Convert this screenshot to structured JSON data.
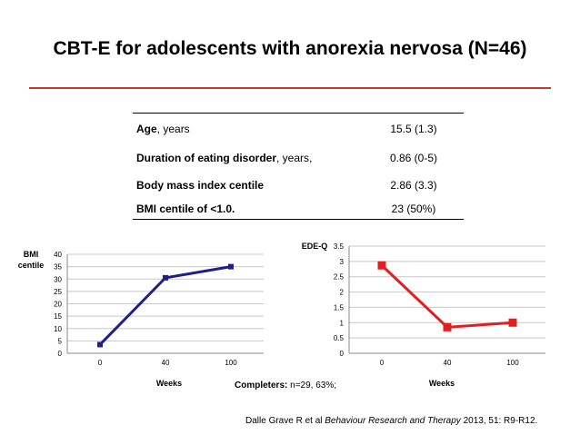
{
  "title": "CBT-E for adolescents with anorexia nervosa (N=46)",
  "colors": {
    "rule": "#c0392b",
    "bmi_line": "#1f1f8c",
    "ede_line": "#e02020",
    "grid": "#c8c8c8"
  },
  "table": {
    "rows": [
      {
        "label_bold": "Age",
        "label_rest": ", years",
        "value": "15.5 (1.3)"
      },
      {
        "label_bold": "Duration of eating disorder",
        "label_rest": ", years,",
        "value": "0.86  (0-5)"
      },
      {
        "label_bold": "Body mass index centile",
        "label_rest": "",
        "value": "2.86  (3.3)"
      },
      {
        "label_bold": "BMI centile of <1.0.",
        "label_rest": "",
        "value": "23 (50%)"
      }
    ]
  },
  "chart_data": [
    {
      "type": "line",
      "categories": [
        "0",
        "40",
        "100"
      ],
      "series": [
        {
          "values": [
            3.5,
            30.5,
            35
          ]
        }
      ],
      "ylabel": "BMI centile",
      "xlabel": "Weeks",
      "ylim": [
        0,
        40
      ],
      "yticks": [
        "0",
        "5",
        "10",
        "15",
        "20",
        "25",
        "30",
        "35",
        "40"
      ],
      "grid": true
    },
    {
      "type": "line",
      "categories": [
        "0",
        "40",
        "100"
      ],
      "series": [
        {
          "values": [
            2.87,
            0.85,
            1.0
          ]
        }
      ],
      "ylabel": "EDE-Q",
      "xlabel": "Weeks",
      "ylim": [
        0,
        3.5
      ],
      "yticks": [
        "0",
        "0.5",
        "1",
        "1.5",
        "2",
        "2.5",
        "3",
        "3.5"
      ],
      "grid": true
    }
  ],
  "completers": {
    "label": "Completers:",
    "text": " n=29, 63%;"
  },
  "citation": {
    "authors": "Dalle Grave R et al ",
    "journal": "Behaviour Research and Therapy",
    "rest": " 2013, 51: R9-R12."
  }
}
